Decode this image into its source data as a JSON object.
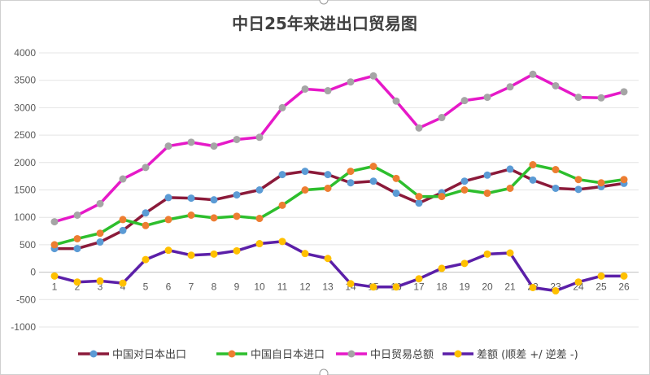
{
  "chart_data": {
    "type": "line",
    "title": "中日25年来进出口贸易图",
    "x": [
      1,
      2,
      3,
      4,
      5,
      6,
      7,
      8,
      9,
      10,
      11,
      12,
      13,
      14,
      15,
      16,
      17,
      18,
      19,
      20,
      21,
      22,
      23,
      24,
      25,
      26
    ],
    "ylim": [
      -1000,
      4000
    ],
    "yticks": [
      4000,
      3500,
      3000,
      2500,
      2000,
      1500,
      1000,
      500,
      0,
      -500,
      -1000
    ],
    "grid": true,
    "legend_position": "bottom",
    "series": [
      {
        "name": "中国对日本出口",
        "line_color": "#8B1A3A",
        "marker_color": "#5B9BD5",
        "values": [
          430,
          430,
          550,
          760,
          1080,
          1360,
          1350,
          1320,
          1410,
          1500,
          1780,
          1840,
          1780,
          1630,
          1660,
          1440,
          1260,
          1450,
          1660,
          1770,
          1880,
          1680,
          1530,
          1510,
          1560,
          1620
        ]
      },
      {
        "name": "中国自日本进口",
        "line_color": "#2DBE2D",
        "marker_color": "#ED7D31",
        "values": [
          500,
          610,
          710,
          960,
          850,
          960,
          1040,
          990,
          1020,
          980,
          1220,
          1500,
          1530,
          1840,
          1930,
          1710,
          1380,
          1380,
          1500,
          1440,
          1530,
          1960,
          1870,
          1690,
          1630,
          1690
        ]
      },
      {
        "name": "中日贸易总额",
        "line_color": "#E619C8",
        "marker_color": "#A5A5A5",
        "values": [
          920,
          1040,
          1250,
          1700,
          1910,
          2300,
          2370,
          2300,
          2420,
          2460,
          3000,
          3340,
          3310,
          3470,
          3580,
          3120,
          2630,
          2820,
          3130,
          3190,
          3380,
          3610,
          3400,
          3190,
          3180,
          3290
        ]
      },
      {
        "name": "差额 (顺差 +/ 逆差 -)",
        "line_color": "#5B1FA8",
        "marker_color": "#FFC000",
        "values": [
          -70,
          -180,
          -160,
          -200,
          230,
          400,
          310,
          330,
          390,
          520,
          560,
          340,
          250,
          -210,
          -270,
          -270,
          -120,
          70,
          160,
          330,
          350,
          -280,
          -340,
          -180,
          -70,
          -70
        ]
      }
    ]
  }
}
